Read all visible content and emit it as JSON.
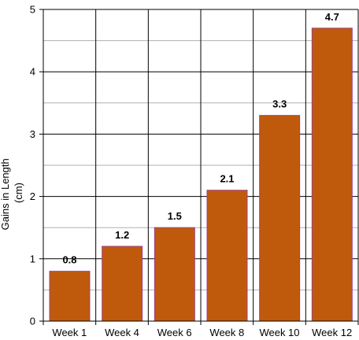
{
  "chart_data": {
    "type": "bar",
    "categories": [
      "Week 1",
      "Week 4",
      "Week 6",
      "Week 8",
      "Week 10",
      "Week 12"
    ],
    "values": [
      0.8,
      1.2,
      1.5,
      2.1,
      3.3,
      4.7
    ],
    "data_labels": [
      "0.8",
      "1.2",
      "1.5",
      "2.1",
      "3.3",
      "4.7"
    ],
    "ylabel_line1": "Gains in Length",
    "ylabel_line2": "(cm)",
    "xlabel": "",
    "ylim": [
      0,
      5
    ],
    "yticks": [
      "0",
      "1",
      "2",
      "3",
      "4",
      "5"
    ],
    "ytick_values": [
      0,
      1,
      2,
      3,
      4,
      5
    ],
    "minor_gridlines": [
      0.5,
      1.5,
      2.5,
      3.5,
      4.5
    ],
    "grid": true,
    "legend": "none",
    "colors": {
      "bar_fill": "#bf5a0c",
      "bar_outline": "#a0408a",
      "major_grid": "#000000",
      "minor_grid": "#b0b0b0"
    }
  }
}
